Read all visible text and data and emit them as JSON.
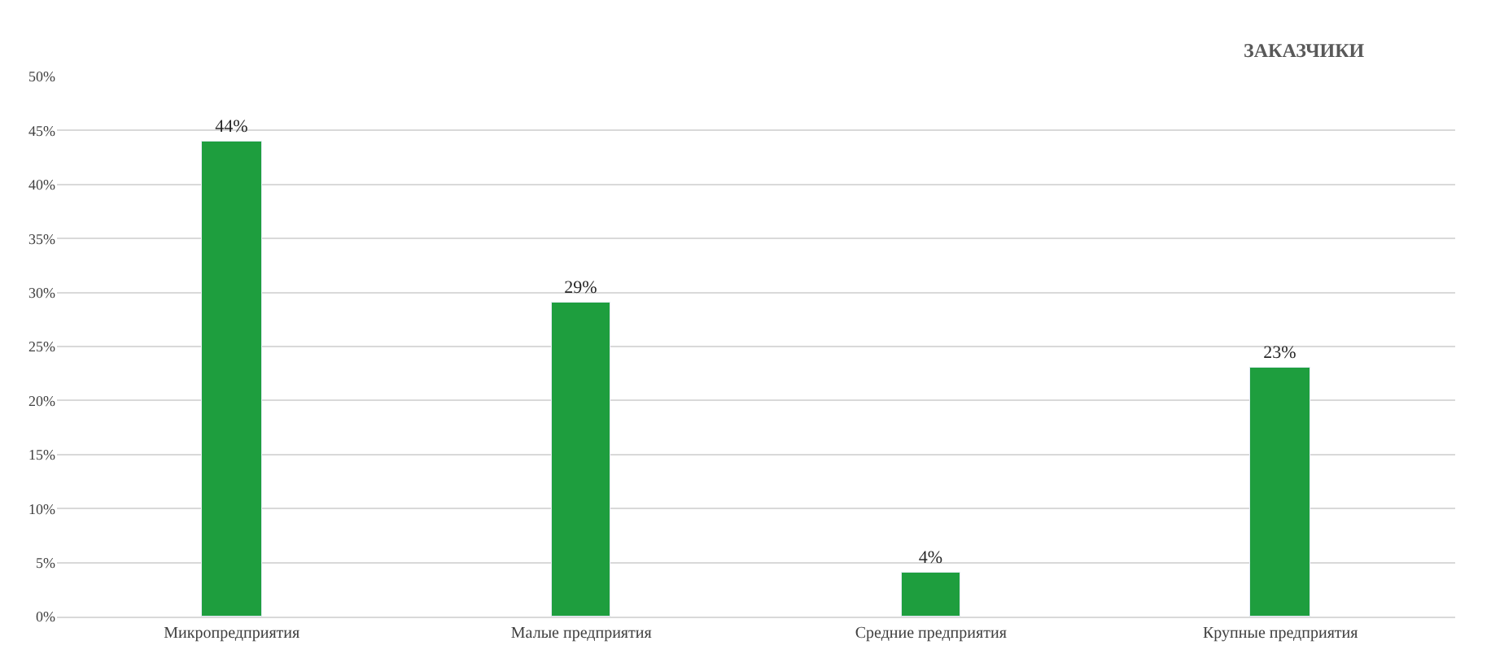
{
  "chart_data": {
    "type": "bar",
    "title": "ЗАКАЗЧИКИ",
    "categories": [
      "Микропредприятия",
      "Малые предприятия",
      "Средние предприятия",
      "Крупные предприятия"
    ],
    "values": [
      44,
      29,
      4,
      23
    ],
    "color": "#1e9e3e",
    "ylim": [
      0,
      50
    ],
    "yticks": [
      {
        "value": 0,
        "label": "0%"
      },
      {
        "value": 5,
        "label": "5%"
      },
      {
        "value": 10,
        "label": "10%"
      },
      {
        "value": 15,
        "label": "15%"
      },
      {
        "value": 20,
        "label": "20%"
      },
      {
        "value": 25,
        "label": "25%"
      },
      {
        "value": 30,
        "label": "30%"
      },
      {
        "value": 35,
        "label": "35%"
      },
      {
        "value": 40,
        "label": "40%"
      },
      {
        "value": 45,
        "label": "45%"
      },
      {
        "value": 50,
        "label": "50%"
      }
    ],
    "value_labels": [
      "44%",
      "29%",
      "4%",
      "23%"
    ],
    "grid": "y"
  }
}
